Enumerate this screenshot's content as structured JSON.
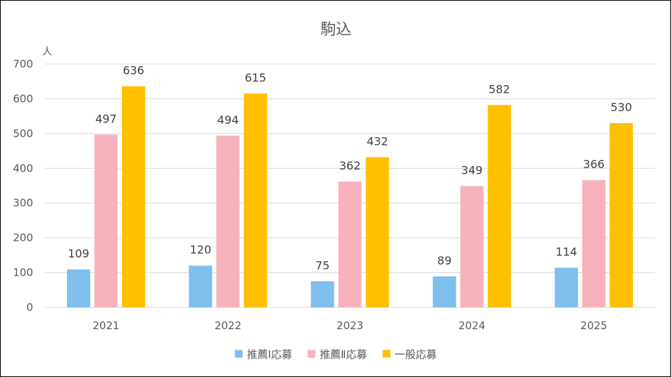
{
  "chart_data": {
    "type": "bar",
    "title": "駒込",
    "ylabel": "人",
    "xlabel": "",
    "categories": [
      "2021",
      "2022",
      "2023",
      "2024",
      "2025"
    ],
    "series": [
      {
        "name": "推薦Ⅰ応募",
        "color": "#7fbfed",
        "values": [
          109,
          120,
          75,
          89,
          114
        ]
      },
      {
        "name": "推薦Ⅱ応募",
        "color": "#f8b2bd",
        "values": [
          497,
          494,
          362,
          349,
          366
        ]
      },
      {
        "name": "一般応募",
        "color": "#ffc000",
        "values": [
          636,
          615,
          432,
          582,
          530
        ]
      }
    ],
    "ylim": [
      0,
      700
    ],
    "yticks": [
      0,
      100,
      200,
      300,
      400,
      500,
      600,
      700
    ],
    "grid": true,
    "legend": "bottom"
  }
}
